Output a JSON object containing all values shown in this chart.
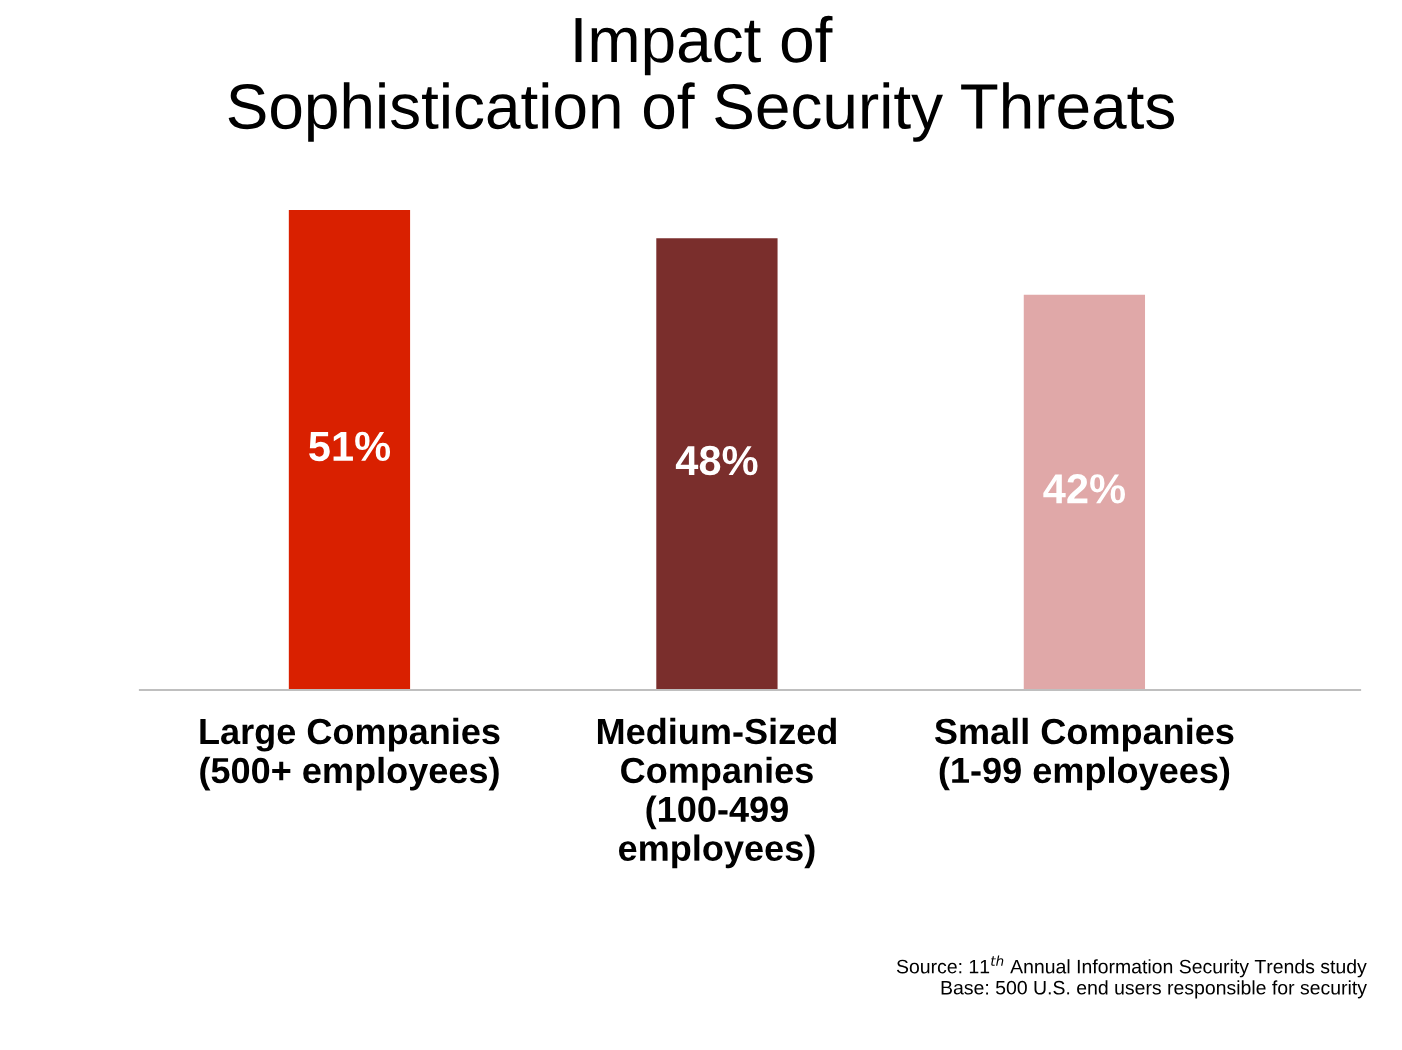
{
  "chart_data": {
    "type": "bar",
    "title": "Impact of\nSophistication of Security Threats",
    "categories": [
      "Large Companies\n(500+ employees)",
      "Medium-Sized\nCompanies\n(100-499\nemployees)",
      "Small Companies\n(1-99 employees)"
    ],
    "values": [
      51,
      48,
      42
    ],
    "colors": [
      "#d92000",
      "#7a2e2c",
      "#e0a8a8"
    ],
    "data_labels": true,
    "value_labels": [
      "51%",
      "48%",
      "42%"
    ],
    "annotations": [
      "Source: 11$^{th}$ Annual Information Security Trends study\nBase: 500 U.S. end users responsible for security"
    ]
  }
}
